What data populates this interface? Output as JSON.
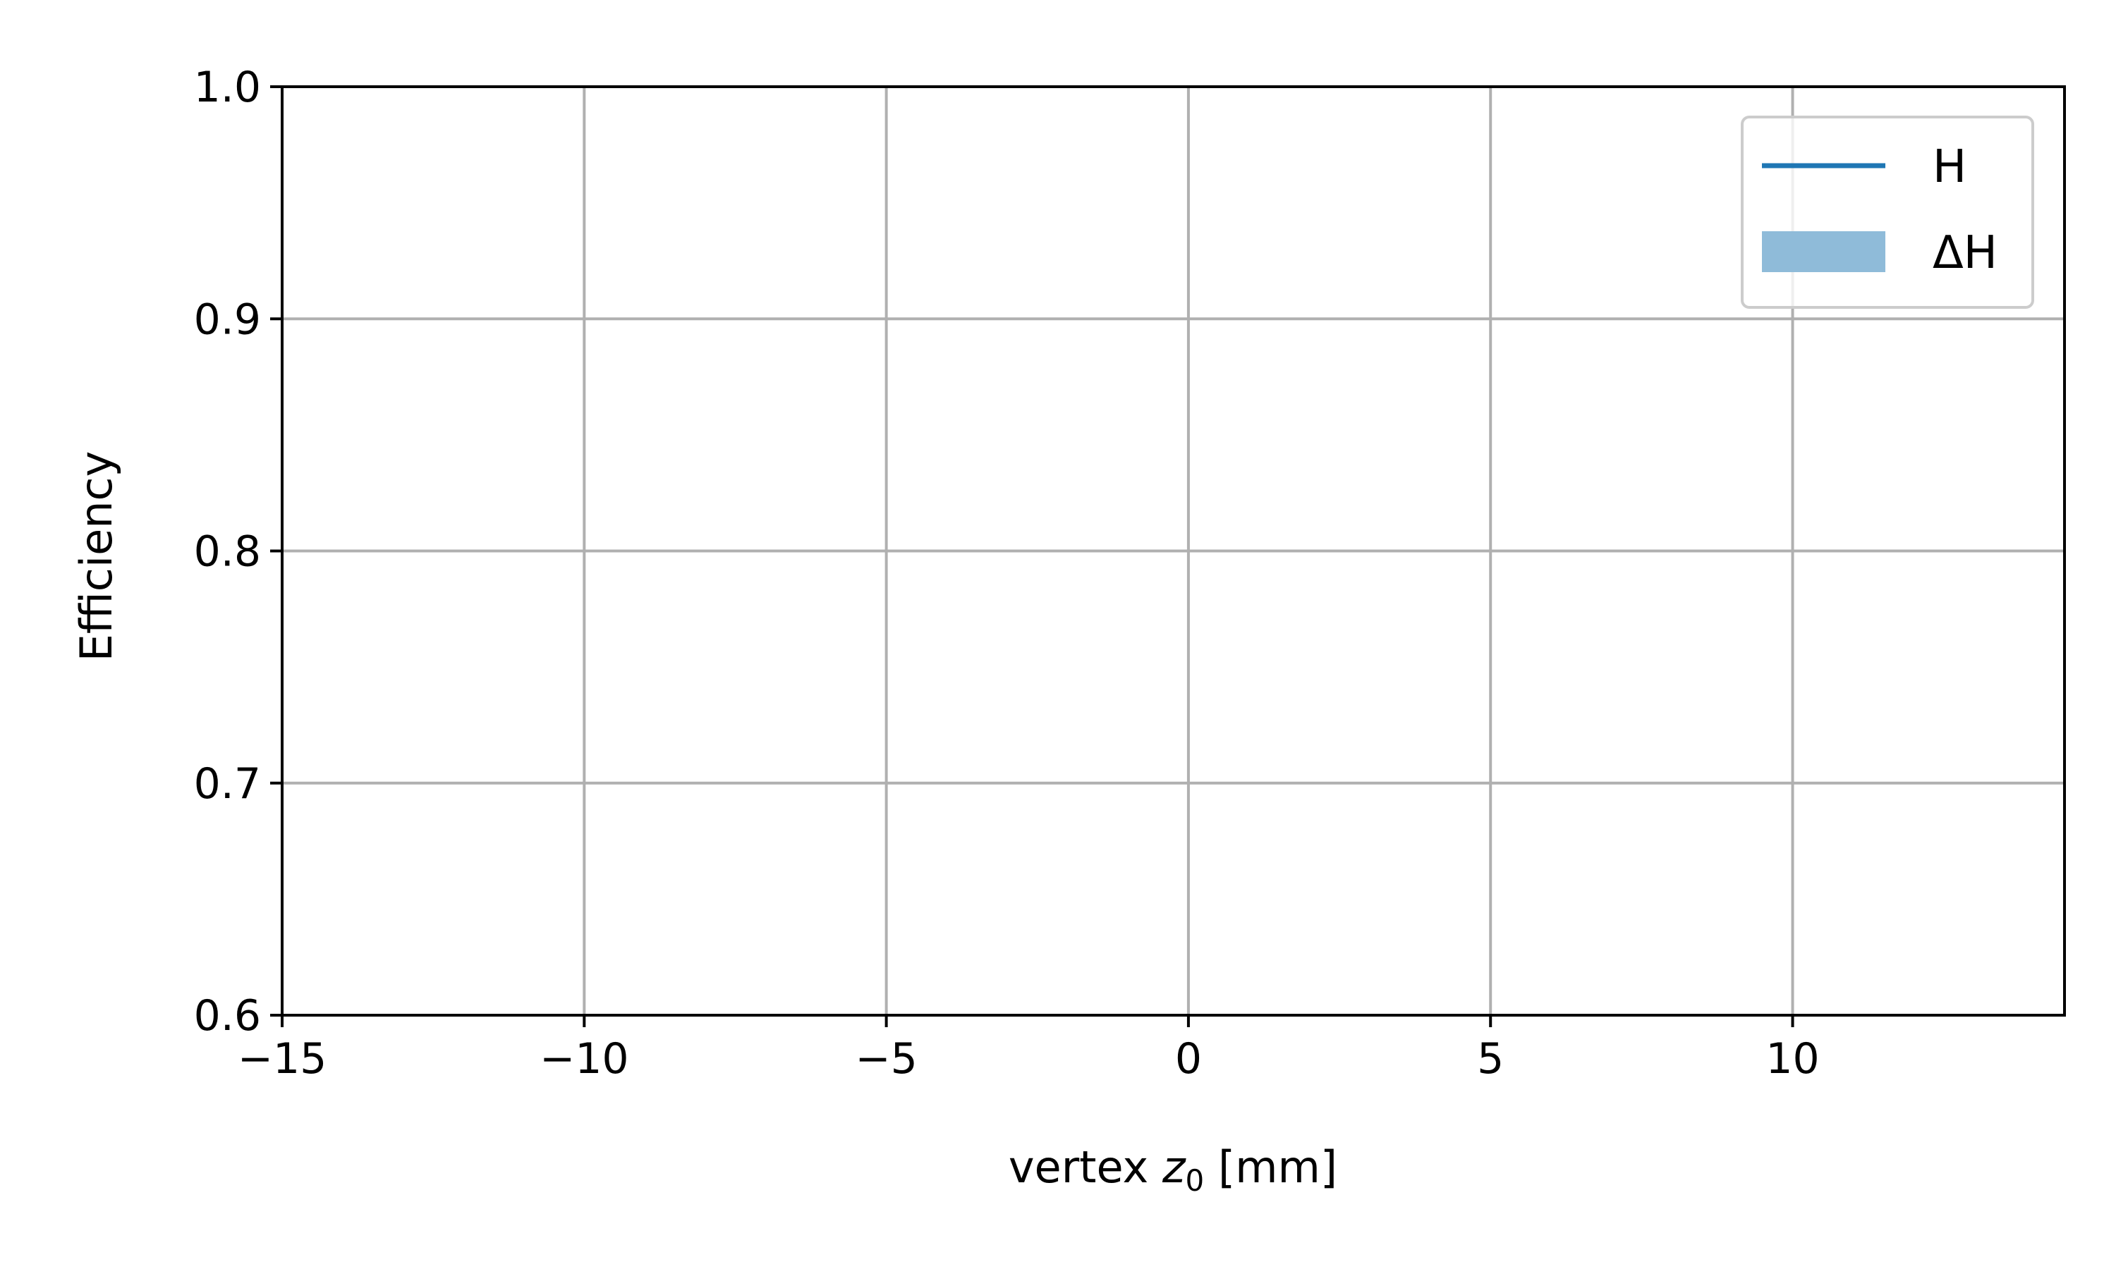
{
  "chart_data": {
    "type": "line",
    "title": "",
    "xlabel": {
      "prefix": "vertex ",
      "var": "z",
      "sub": "0",
      "suffix": " [mm]"
    },
    "ylabel": "Efficiency",
    "xlim": [
      -15,
      14.5
    ],
    "ylim": [
      0.6,
      1.0
    ],
    "x_ticks": [
      -15,
      -10,
      -5,
      0,
      5,
      10
    ],
    "x_tick_labels": [
      "−15",
      "−10",
      "−5",
      "0",
      "5",
      "10"
    ],
    "y_ticks": [
      0.6,
      0.7,
      0.8,
      0.9,
      1.0
    ],
    "y_tick_labels": [
      "0.6",
      "0.7",
      "0.8",
      "0.9",
      "1.0"
    ],
    "grid": true,
    "legend_position": "top-right",
    "legend": [
      {
        "label": "H",
        "kind": "line",
        "color": "#1f77b4"
      },
      {
        "label": "ΔH",
        "kind": "band",
        "color": "#8fbbd9"
      }
    ],
    "series": [
      {
        "name": "H",
        "x": [],
        "y": []
      }
    ],
    "bands": [
      {
        "name": "ΔH",
        "x": [],
        "lower": [],
        "upper": []
      }
    ]
  }
}
